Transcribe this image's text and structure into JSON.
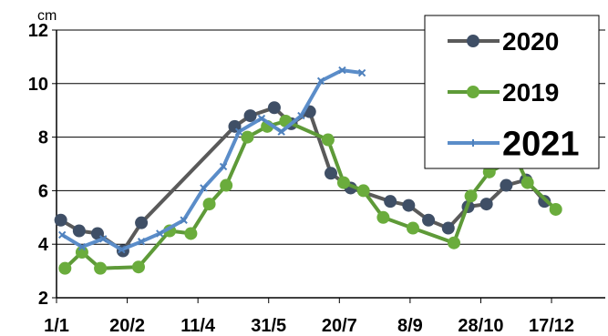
{
  "chart_data": {
    "type": "line",
    "title": "",
    "xlabel": "",
    "ylabel": "",
    "y_unit": "cm",
    "ylim": [
      2,
      12
    ],
    "yticks": [
      2,
      4,
      6,
      8,
      10,
      12
    ],
    "xlim": [
      "2020-01-01",
      "2021-01-23"
    ],
    "xticks": [
      "1/1",
      "20/2",
      "11/4",
      "31/5",
      "20/7",
      "8/9",
      "28/10",
      "17/12"
    ],
    "grid": "horizontal",
    "legend_position": "top-right",
    "series": [
      {
        "name": "2020",
        "color": "#5a5a5a",
        "marker": "circle",
        "marker_color": "#3f4f66",
        "points": [
          {
            "x": "2020-01-04",
            "y": 4.9
          },
          {
            "x": "2020-01-17",
            "y": 4.5
          },
          {
            "x": "2020-01-30",
            "y": 4.4
          },
          {
            "x": "2020-02-17",
            "y": 3.75
          },
          {
            "x": "2020-03-01",
            "y": 4.8
          },
          {
            "x": "2020-05-06",
            "y": 8.4
          },
          {
            "x": "2020-05-17",
            "y": 8.8
          },
          {
            "x": "2020-06-03",
            "y": 9.1
          },
          {
            "x": "2020-06-15",
            "y": 8.5
          },
          {
            "x": "2020-06-28",
            "y": 8.95
          },
          {
            "x": "2020-07-13",
            "y": 6.65
          },
          {
            "x": "2020-07-27",
            "y": 6.1
          },
          {
            "x": "2020-08-24",
            "y": 5.6
          },
          {
            "x": "2020-09-06",
            "y": 5.45
          },
          {
            "x": "2020-09-20",
            "y": 4.9
          },
          {
            "x": "2020-10-04",
            "y": 4.6
          },
          {
            "x": "2020-10-18",
            "y": 5.4
          },
          {
            "x": "2020-10-31",
            "y": 5.5
          },
          {
            "x": "2020-11-14",
            "y": 6.2
          },
          {
            "x": "2020-11-28",
            "y": 6.4
          },
          {
            "x": "2020-12-11",
            "y": 5.6
          }
        ]
      },
      {
        "name": "2019",
        "color": "#5e9a38",
        "marker": "circle",
        "marker_color": "#6aac3c",
        "points": [
          {
            "x": "2020-01-07",
            "y": 3.1
          },
          {
            "x": "2020-01-19",
            "y": 3.7
          },
          {
            "x": "2020-02-01",
            "y": 3.1
          },
          {
            "x": "2020-02-28",
            "y": 3.15
          },
          {
            "x": "2020-03-21",
            "y": 4.5
          },
          {
            "x": "2020-04-05",
            "y": 4.4
          },
          {
            "x": "2020-04-18",
            "y": 5.5
          },
          {
            "x": "2020-04-30",
            "y": 6.2
          },
          {
            "x": "2020-05-15",
            "y": 8.0
          },
          {
            "x": "2020-05-29",
            "y": 8.4
          },
          {
            "x": "2020-06-11",
            "y": 8.6
          },
          {
            "x": "2020-07-11",
            "y": 7.9
          },
          {
            "x": "2020-07-22",
            "y": 6.3
          },
          {
            "x": "2020-08-05",
            "y": 6.0
          },
          {
            "x": "2020-08-19",
            "y": 5.0
          },
          {
            "x": "2020-09-09",
            "y": 4.6
          },
          {
            "x": "2020-10-08",
            "y": 4.05
          },
          {
            "x": "2020-10-20",
            "y": 5.8
          },
          {
            "x": "2020-11-02",
            "y": 6.7
          },
          {
            "x": "2020-11-21",
            "y": 7.2
          },
          {
            "x": "2020-11-29",
            "y": 6.3
          },
          {
            "x": "2020-12-19",
            "y": 5.3
          }
        ]
      },
      {
        "name": "2021",
        "color": "#5b8dc9",
        "marker": "cross",
        "marker_color": "#4f81bd",
        "points": [
          {
            "x": "2020-01-05",
            "y": 4.35
          },
          {
            "x": "2020-01-19",
            "y": 3.9
          },
          {
            "x": "2020-02-03",
            "y": 4.2
          },
          {
            "x": "2020-02-16",
            "y": 3.8
          },
          {
            "x": "2020-03-01",
            "y": 4.1
          },
          {
            "x": "2020-03-14",
            "y": 4.4
          },
          {
            "x": "2020-03-31",
            "y": 4.9
          },
          {
            "x": "2020-04-14",
            "y": 6.1
          },
          {
            "x": "2020-04-28",
            "y": 6.9
          },
          {
            "x": "2020-05-09",
            "y": 8.2
          },
          {
            "x": "2020-05-25",
            "y": 8.7
          },
          {
            "x": "2020-06-08",
            "y": 8.2
          },
          {
            "x": "2020-06-22",
            "y": 8.8
          },
          {
            "x": "2020-07-06",
            "y": 10.1
          },
          {
            "x": "2020-07-21",
            "y": 10.5
          },
          {
            "x": "2020-08-04",
            "y": 10.4
          }
        ]
      }
    ],
    "legend": [
      {
        "label": "2020",
        "series": 0
      },
      {
        "label": "2019",
        "series": 1
      },
      {
        "label": "2021",
        "series": 2
      }
    ]
  }
}
